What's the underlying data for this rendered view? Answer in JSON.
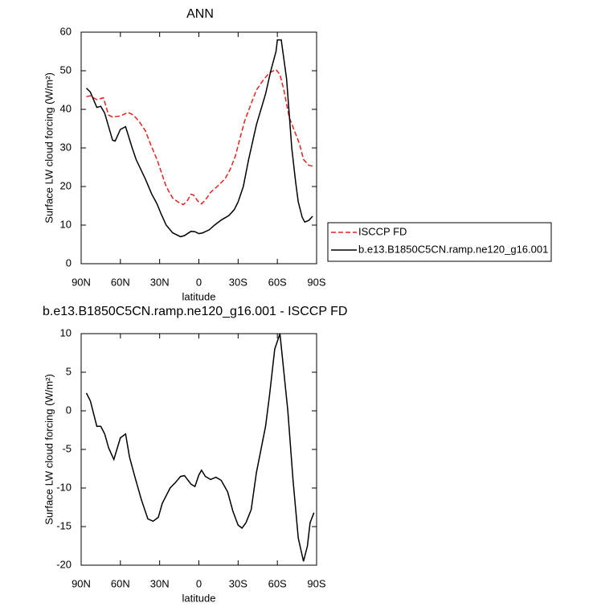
{
  "chart_data": [
    {
      "type": "line",
      "title": "ANN",
      "xlabel": "latitude",
      "ylabel": "Surface LW cloud forcing (W/m²)",
      "xlim": [
        90,
        -90
      ],
      "xticks": [
        {
          "value": 90,
          "label": "90N"
        },
        {
          "value": 60,
          "label": "60N"
        },
        {
          "value": 30,
          "label": "30N"
        },
        0,
        {
          "value": -30,
          "label": "30S"
        },
        {
          "value": -60,
          "label": "60S"
        },
        {
          "value": -90,
          "label": "90S"
        }
      ],
      "ylim": [
        0,
        60
      ],
      "yticks": [
        0,
        10,
        20,
        30,
        40,
        50,
        60
      ],
      "legend": "right",
      "series": [
        {
          "name": "ISCCP FD",
          "color": "#e8211e",
          "line_style": "dashed",
          "x": [
            86,
            83,
            78,
            73,
            69,
            66,
            60,
            54,
            50,
            46,
            41,
            37,
            32,
            29,
            25,
            20,
            16,
            12,
            9,
            6,
            4,
            1,
            -2,
            -5,
            -9,
            -14,
            -20,
            -24,
            -28,
            -31,
            -35,
            -40,
            -44,
            -49,
            -54,
            -59,
            -62,
            -65,
            -69,
            -73,
            -77,
            -80,
            -84,
            -87
          ],
          "values": [
            43.3,
            43.5,
            42.5,
            43,
            38.5,
            38,
            38.3,
            39.2,
            38.5,
            37,
            34.5,
            31,
            27,
            24,
            20,
            17,
            16,
            15.3,
            16.2,
            18,
            17.8,
            16.3,
            15.5,
            16.5,
            18.5,
            20,
            22,
            24.5,
            28,
            32,
            37,
            41.5,
            45,
            47.5,
            49.5,
            50.3,
            49,
            45,
            38,
            34.5,
            31,
            27,
            25.5,
            25.3
          ]
        },
        {
          "name": "b.e13.B1850C5CN.ramp.ne120_g16.001",
          "color": "#000000",
          "line_style": "solid",
          "x": [
            86,
            83,
            78,
            75,
            72,
            66,
            64,
            60,
            56,
            51,
            48,
            41,
            36,
            32,
            29,
            25,
            20,
            14,
            11,
            6,
            3,
            0,
            -3,
            -8,
            -12,
            -17,
            -23,
            -27,
            -30,
            -34,
            -38,
            -44,
            -51,
            -55,
            -59,
            -60,
            -63,
            -67,
            -71,
            -74,
            -76,
            -79,
            -81,
            -84,
            -87
          ],
          "values": [
            45.5,
            44.5,
            40.5,
            40.8,
            39,
            32,
            31.8,
            34.8,
            35.5,
            30,
            27,
            22,
            18,
            15.5,
            13,
            10,
            8,
            7,
            7.3,
            8.4,
            8.3,
            7.8,
            8,
            8.8,
            10,
            11.3,
            12.5,
            14,
            16,
            20,
            27,
            36,
            44,
            50,
            55,
            58,
            58,
            48,
            30,
            21,
            16,
            12,
            10.8,
            11.2,
            12.3
          ]
        }
      ]
    },
    {
      "type": "line",
      "title": "b.e13.B1850C5CN.ramp.ne120_g16.001 - ISCCP FD",
      "xlabel": "latitude",
      "ylabel": "Surface LW cloud forcing (W/m²)",
      "xlim": [
        90,
        -90
      ],
      "xticks": [
        {
          "value": 90,
          "label": "90N"
        },
        {
          "value": 60,
          "label": "60N"
        },
        {
          "value": 30,
          "label": "30N"
        },
        0,
        {
          "value": -30,
          "label": "30S"
        },
        {
          "value": -60,
          "label": "60S"
        },
        {
          "value": -90,
          "label": "90S"
        }
      ],
      "ylim": [
        -20,
        10
      ],
      "yticks": [
        -20,
        -15,
        -10,
        -5,
        0,
        5,
        10
      ],
      "series": [
        {
          "color": "#000000",
          "line_style": "solid",
          "x": [
            86,
            83,
            78,
            75,
            72,
            69,
            65,
            60,
            56,
            53,
            49,
            44,
            39,
            35,
            31,
            28,
            22,
            18,
            14,
            11,
            6,
            3,
            0,
            -2,
            -5,
            -9,
            -13,
            -17,
            -22,
            -26,
            -30,
            -33,
            -36,
            -40,
            -44,
            -51,
            -54,
            -58,
            -62,
            -68,
            -72,
            -76,
            -80,
            -83,
            -85,
            -88
          ],
          "values": [
            2.3,
            1.3,
            -2,
            -2,
            -3,
            -4.8,
            -6.3,
            -3.5,
            -3,
            -6,
            -8.5,
            -11.5,
            -14,
            -14.3,
            -13.8,
            -12,
            -10,
            -9.3,
            -8.5,
            -8.4,
            -9.5,
            -9.8,
            -8.3,
            -7.7,
            -8.5,
            -8.9,
            -8.6,
            -9,
            -10.5,
            -13,
            -14.8,
            -15.2,
            -14.5,
            -12.8,
            -8,
            -2,
            2,
            8,
            10,
            0,
            -9,
            -16.5,
            -19.5,
            -17.5,
            -14.5,
            -13.2
          ]
        }
      ]
    }
  ]
}
